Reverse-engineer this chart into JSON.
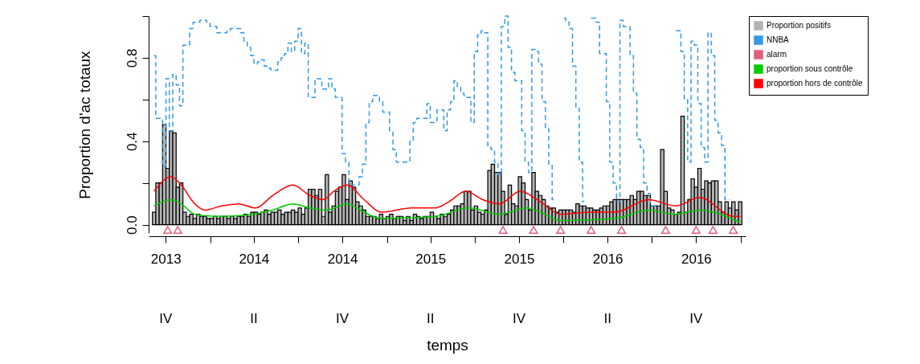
{
  "chart_data": {
    "type": "bar",
    "xlabel": "temps",
    "ylabel": "Proportion d'ac totaux",
    "x": [
      "2013-09-07",
      "2013-09-14",
      "2013-09-21",
      "2013-09-28",
      "2013-10-05",
      "2013-10-12",
      "2013-10-19",
      "2013-10-26",
      "2013-11-02",
      "2013-11-09",
      "2013-11-16",
      "2013-11-23",
      "2013-11-30",
      "2013-12-07",
      "2013-12-14",
      "2013-12-21",
      "2013-12-28",
      "2014-01-04",
      "2014-01-11",
      "2014-01-18",
      "2014-01-25",
      "2014-02-01",
      "2014-02-08",
      "2014-02-15",
      "2014-02-22",
      "2014-03-01",
      "2014-03-08",
      "2014-03-15",
      "2014-03-22",
      "2014-03-29",
      "2014-04-05",
      "2014-04-12",
      "2014-04-19",
      "2014-04-26",
      "2014-05-03",
      "2014-05-10",
      "2014-05-17",
      "2014-05-24",
      "2014-05-31",
      "2014-06-07",
      "2014-06-14",
      "2014-06-21",
      "2014-06-28",
      "2014-07-05",
      "2014-07-12",
      "2014-07-19",
      "2014-07-26",
      "2014-08-02",
      "2014-08-09",
      "2014-08-16",
      "2014-08-23",
      "2014-08-30",
      "2014-09-06",
      "2014-09-13",
      "2014-09-20",
      "2014-09-27",
      "2014-10-04",
      "2014-10-11",
      "2014-10-18",
      "2014-10-25",
      "2014-11-01",
      "2014-11-08",
      "2014-11-15",
      "2014-11-22",
      "2014-11-29",
      "2014-12-06",
      "2014-12-13",
      "2014-12-20",
      "2014-12-27",
      "2015-01-03",
      "2015-01-10",
      "2015-01-17",
      "2015-01-24",
      "2015-01-31",
      "2015-02-07",
      "2015-02-14",
      "2015-02-21",
      "2015-02-28",
      "2015-03-07",
      "2015-03-14",
      "2015-03-21",
      "2015-03-28",
      "2015-04-04",
      "2015-04-11",
      "2015-04-18",
      "2015-04-25",
      "2015-05-02",
      "2015-05-09",
      "2015-05-16",
      "2015-05-23",
      "2015-05-30",
      "2015-06-06",
      "2015-06-13",
      "2015-06-20",
      "2015-06-27",
      "2015-07-04",
      "2015-07-11",
      "2015-07-18",
      "2015-07-25",
      "2015-08-01",
      "2015-08-08",
      "2015-08-15",
      "2015-08-22",
      "2015-08-29",
      "2015-09-05",
      "2015-09-12",
      "2015-09-19",
      "2015-09-26",
      "2015-10-03",
      "2015-10-10",
      "2015-10-17",
      "2015-10-24",
      "2015-10-31",
      "2015-11-07",
      "2015-11-14",
      "2015-11-21",
      "2015-11-28",
      "2015-12-05",
      "2015-12-12",
      "2015-12-19",
      "2015-12-26",
      "2016-01-02",
      "2016-01-09",
      "2016-01-16",
      "2016-01-23",
      "2016-01-30",
      "2016-02-06",
      "2016-02-13",
      "2016-02-20",
      "2016-02-27",
      "2016-03-05",
      "2016-03-12",
      "2016-03-19",
      "2016-03-26",
      "2016-04-02",
      "2016-04-09",
      "2016-04-16",
      "2016-04-23",
      "2016-04-30",
      "2016-05-07",
      "2016-05-14",
      "2016-05-21",
      "2016-05-28",
      "2016-06-04",
      "2016-06-11",
      "2016-06-18",
      "2016-06-25",
      "2016-07-02",
      "2016-07-09",
      "2016-07-16",
      "2016-07-23",
      "2016-07-30",
      "2016-08-06",
      "2016-08-13",
      "2016-08-20",
      "2016-08-27",
      "2016-09-03",
      "2016-09-10",
      "2016-09-17",
      "2016-09-24",
      "2016-10-01",
      "2016-10-08",
      "2016-10-15",
      "2016-10-22",
      "2016-10-29",
      "2016-11-05",
      "2016-11-12",
      "2016-11-19",
      "2016-11-26",
      "2016-12-03",
      "2016-12-10",
      "2016-12-17",
      "2016-12-24",
      "2016-12-31"
    ],
    "series": [
      {
        "name": "Proportion positifs",
        "color": "#b4b4b4",
        "values": [
          0.06,
          0.2,
          0.2,
          0.48,
          0.27,
          0.45,
          0.44,
          0.18,
          0.2,
          0.06,
          0.04,
          0.05,
          0.03,
          0.05,
          0.04,
          0.04,
          0.03,
          0.03,
          0.04,
          0.03,
          0.04,
          0.04,
          0.03,
          0.04,
          0.03,
          0.04,
          0.04,
          0.05,
          0.04,
          0.06,
          0.06,
          0.05,
          0.06,
          0.07,
          0.05,
          0.06,
          0.06,
          0.07,
          0.05,
          0.06,
          0.06,
          0.07,
          0.06,
          0.08,
          0.05,
          0.08,
          0.17,
          0.17,
          0.14,
          0.17,
          0.04,
          0.24,
          0.06,
          0.09,
          0.16,
          0.18,
          0.24,
          0.12,
          0.21,
          0.18,
          0.11,
          0.09,
          0.07,
          0.04,
          0.04,
          0.04,
          0.03,
          0.05,
          0.03,
          0.04,
          0.05,
          0.03,
          0.04,
          0.04,
          0.02,
          0.04,
          0.02,
          0.05,
          0.04,
          0.03,
          0.04,
          0.04,
          0.06,
          0.04,
          0.03,
          0.05,
          0.04,
          0.05,
          0.07,
          0.09,
          0.09,
          0.1,
          0.16,
          0.16,
          0.07,
          0.09,
          0.06,
          0.05,
          0.07,
          0.26,
          0.29,
          0.25,
          0.25,
          0.16,
          0.05,
          0.19,
          0.1,
          0.09,
          0.23,
          0.2,
          0.12,
          0.07,
          0.25,
          0.16,
          0.14,
          0.12,
          0.09,
          0.08,
          0.08,
          0.06,
          0.07,
          0.07,
          0.07,
          0.07,
          0.06,
          0.1,
          0.09,
          0.09,
          0.08,
          0.08,
          0.07,
          0.07,
          0.08,
          0.09,
          0.09,
          0.11,
          0.12,
          0.12,
          0.12,
          0.12,
          0.12,
          0.14,
          0.12,
          0.16,
          0.16,
          0.14,
          0.14,
          0.09,
          0.09,
          0.09,
          0.36,
          0.16,
          0.08,
          0.07,
          0.05,
          0.06,
          0.52,
          0.06,
          0.12,
          0.22,
          0.18,
          0.27,
          0.17,
          0.21,
          0.2,
          0.21,
          0.21,
          0.11,
          0.06,
          0.11,
          0.08,
          0.11,
          0.07,
          0.11
        ]
      },
      {
        "name": "NNBA",
        "type": "step",
        "line_style": "dashed",
        "color": "#3399e6",
        "values": [
          0.81,
          0.51,
          0.51,
          0.28,
          0.7,
          0.45,
          0.72,
          0.67,
          0.57,
          0.86,
          0.86,
          0.94,
          0.97,
          0.97,
          0.98,
          0.98,
          0.97,
          0.95,
          0.95,
          0.92,
          0.92,
          0.92,
          0.93,
          0.94,
          0.94,
          0.94,
          0.92,
          0.88,
          0.85,
          0.81,
          0.77,
          0.78,
          0.79,
          0.76,
          0.75,
          0.74,
          0.74,
          0.78,
          0.8,
          0.82,
          0.87,
          0.83,
          0.88,
          0.94,
          0.82,
          0.87,
          0.61,
          0.61,
          0.7,
          0.7,
          0.65,
          0.65,
          0.7,
          0.65,
          0.61,
          0.61,
          0.34,
          0.3,
          0.19,
          0.19,
          0.19,
          0.23,
          0.29,
          0.49,
          0.59,
          0.62,
          0.62,
          0.59,
          0.54,
          0.54,
          0.45,
          0.36,
          0.3,
          0.3,
          0.3,
          0.3,
          0.4,
          0.49,
          0.51,
          0.51,
          0.51,
          0.58,
          0.49,
          0.49,
          0.55,
          0.55,
          0.45,
          0.55,
          0.59,
          0.69,
          0.66,
          0.63,
          0.61,
          0.61,
          0.49,
          0.83,
          0.91,
          0.93,
          0.92,
          0.37,
          0.36,
          0.3,
          0.24,
          0.95,
          1.0,
          0.85,
          0.73,
          0.69,
          0.69,
          0.45,
          0.3,
          0.25,
          0.84,
          0.83,
          0.77,
          0.59,
          0.46,
          0.29,
          0.12,
          null,
          null,
          0.99,
          0.97,
          0.94,
          0.76,
          0.56,
          0.3,
          0.11,
          null,
          0.99,
          0.99,
          0.97,
          0.82,
          0.82,
          0.59,
          0.3,
          0.2,
          0.11,
          0.98,
          0.95,
          0.95,
          0.81,
          0.63,
          0.41,
          0.37,
          0.2,
          0.15,
          0.09,
          0.09,
          null,
          null,
          null,
          null,
          null,
          0.93,
          0.93,
          0.83,
          0.6,
          0.3,
          0.88,
          0.86,
          0.58,
          0.37,
          0.3,
          0.92,
          0.81,
          0.5,
          0.44,
          0.38,
          0.12,
          0.12,
          null,
          null,
          null
        ]
      },
      {
        "name": "alarm",
        "type": "scatter",
        "marker": "triangle",
        "color": "#e0607a",
        "x": [
          "2013-10-05",
          "2013-10-26",
          "2015-08-29",
          "2015-10-31",
          "2015-12-26",
          "2016-02-27",
          "2016-04-30",
          "2016-07-30",
          "2016-10-01",
          "2016-11-05",
          "2016-12-17"
        ],
        "values": [
          -0.025,
          -0.025,
          -0.025,
          -0.025,
          -0.025,
          -0.025,
          -0.025,
          -0.025,
          -0.025,
          -0.025,
          -0.025
        ]
      },
      {
        "name": "proportion sous contrôle",
        "type": "line",
        "color": "#00cc00",
        "x": [
          "2013-09-07",
          "2013-10-12",
          "2013-11-02",
          "2013-11-30",
          "2014-01-18",
          "2014-03-29",
          "2014-05-10",
          "2014-06-21",
          "2014-07-26",
          "2014-08-30",
          "2014-10-11",
          "2014-11-15",
          "2014-12-20",
          "2015-04-11",
          "2015-06-20",
          "2015-08-22",
          "2015-10-17",
          "2015-11-14",
          "2015-12-26",
          "2016-04-16",
          "2016-06-25",
          "2016-08-20",
          "2016-10-08",
          "2016-12-31"
        ],
        "values": [
          0.09,
          0.12,
          0.1,
          0.05,
          0.04,
          0.05,
          0.07,
          0.1,
          0.08,
          0.07,
          0.1,
          0.06,
          0.03,
          0.04,
          0.08,
          0.05,
          0.08,
          0.06,
          0.02,
          0.03,
          0.07,
          0.05,
          0.07,
          0.01
        ]
      },
      {
        "name": "proportion hors de contrôle",
        "type": "line",
        "color": "#ff0000",
        "x": [
          "2013-09-07",
          "2013-10-12",
          "2013-11-02",
          "2013-11-30",
          "2013-12-21",
          "2014-01-25",
          "2014-03-01",
          "2014-04-05",
          "2014-05-10",
          "2014-06-21",
          "2014-07-26",
          "2014-08-23",
          "2014-09-13",
          "2014-10-11",
          "2014-11-15",
          "2014-12-20",
          "2015-02-21",
          "2015-04-11",
          "2015-05-09",
          "2015-06-13",
          "2015-07-18",
          "2015-08-22",
          "2015-10-03",
          "2015-11-14",
          "2015-12-26",
          "2016-02-27",
          "2016-04-16",
          "2016-06-25",
          "2016-08-20",
          "2016-10-08",
          "2016-12-17",
          "2016-12-31"
        ],
        "values": [
          0.16,
          0.23,
          0.19,
          0.1,
          0.07,
          0.09,
          0.1,
          0.08,
          0.14,
          0.19,
          0.14,
          0.12,
          0.16,
          0.19,
          0.12,
          0.06,
          0.08,
          0.08,
          0.11,
          0.16,
          0.12,
          0.1,
          0.16,
          0.11,
          0.05,
          0.06,
          0.06,
          0.12,
          0.09,
          0.13,
          0.04,
          0.04
        ]
      }
    ],
    "xlim": [
      "2013-09-04",
      "2017-01-03"
    ],
    "xticks": [
      {
        "value": "2013-10-01",
        "label": "2013"
      },
      {
        "value": "2014-01-01",
        "label": null
      },
      {
        "value": "2014-04-01",
        "label": "2014"
      },
      {
        "value": "2014-07-01",
        "label": null
      },
      {
        "value": "2014-10-01",
        "label": "2014"
      },
      {
        "value": "2015-01-01",
        "label": null
      },
      {
        "value": "2015-04-01",
        "label": "2015"
      },
      {
        "value": "2015-07-01",
        "label": null
      },
      {
        "value": "2015-10-01",
        "label": "2015"
      },
      {
        "value": "2016-01-01",
        "label": null
      },
      {
        "value": "2016-04-01",
        "label": "2016"
      },
      {
        "value": "2016-07-01",
        "label": null
      },
      {
        "value": "2016-10-01",
        "label": "2016"
      },
      {
        "value": "2017-01-01",
        "label": null
      }
    ],
    "annotations": [
      "IV",
      "II",
      "IV",
      "II",
      "IV",
      "II",
      "IV"
    ],
    "ylim": [
      -0.04,
      1.0
    ],
    "yticks": [
      {
        "value": 0,
        "label": "0.0"
      },
      {
        "value": 0.2,
        "label": null
      },
      {
        "value": 0.4,
        "label": "0.4"
      },
      {
        "value": 0.6,
        "label": null
      },
      {
        "value": 0.8,
        "label": "0.8"
      },
      {
        "value": 1.0,
        "label": null
      }
    ],
    "grid": false,
    "legend": "top right",
    "marker": "none"
  }
}
